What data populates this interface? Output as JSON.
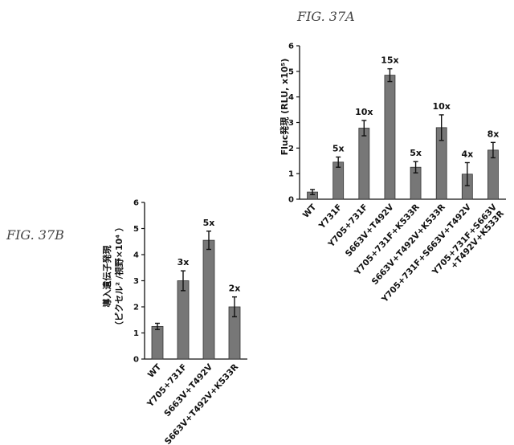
{
  "figure_labels": {
    "a": "FIG. 37A",
    "b": "FIG. 37B"
  },
  "chart_data": [
    {
      "id": "a",
      "type": "bar",
      "ylabel": "Fluc発現 (RLU, x10⁵)",
      "ylim": [
        0,
        6
      ],
      "yticks": [
        "0",
        "1",
        "2",
        "3",
        "4",
        "5",
        "6"
      ],
      "categories": [
        "WT",
        "Y731F",
        "Y705+731F",
        "S663V+T492V",
        "Y705+731F+K533R",
        "S663V+T492V+K533R",
        "Y705+731F+S663V+T492V",
        "Y705+731F+S663V\n+T492V+K533R"
      ],
      "values": [
        0.28,
        1.45,
        2.78,
        4.85,
        1.25,
        2.8,
        0.98,
        1.92
      ],
      "errors": [
        0.1,
        0.2,
        0.3,
        0.25,
        0.22,
        0.5,
        0.45,
        0.3
      ],
      "annotations": [
        "",
        "5x",
        "10x",
        "15x",
        "5x",
        "10x",
        "4x",
        "8x"
      ]
    },
    {
      "id": "b",
      "type": "bar",
      "ylabel_lines": [
        "導入遺伝子発現",
        "（ピクセル² /視野×10⁴ ）"
      ],
      "ylim": [
        0,
        6
      ],
      "yticks": [
        "0",
        "1",
        "2",
        "3",
        "4",
        "5",
        "6"
      ],
      "categories": [
        "WT",
        "Y705+731F",
        "S663V+T492V",
        "S663V+T492V+K533R"
      ],
      "values": [
        1.25,
        3.0,
        4.55,
        2.0
      ],
      "errors": [
        0.12,
        0.38,
        0.35,
        0.38
      ],
      "annotations": [
        "",
        "3x",
        "5x",
        "2x"
      ]
    }
  ]
}
